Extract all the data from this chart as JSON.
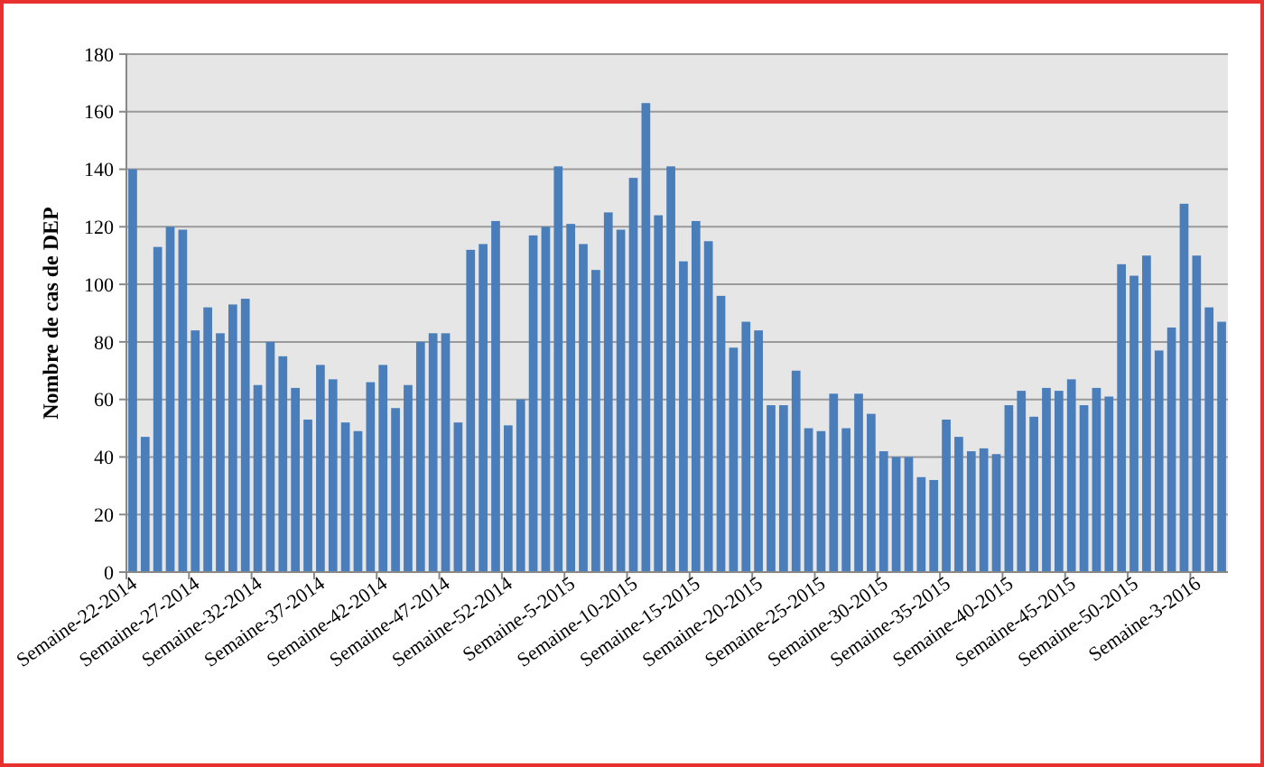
{
  "chart_data": {
    "type": "bar",
    "ylabel": "Nombre de cas de DEP",
    "categories": [
      "Semaine-22-2014",
      null,
      null,
      null,
      null,
      "Semaine-27-2014",
      null,
      null,
      null,
      null,
      "Semaine-32-2014",
      null,
      null,
      null,
      null,
      "Semaine-37-2014",
      null,
      null,
      null,
      null,
      "Semaine-42-2014",
      null,
      null,
      null,
      null,
      "Semaine-47-2014",
      null,
      null,
      null,
      null,
      "Semaine-52-2014",
      null,
      null,
      null,
      null,
      "Semaine-5-2015",
      null,
      null,
      null,
      null,
      "Semaine-10-2015",
      null,
      null,
      null,
      null,
      "Semaine-15-2015",
      null,
      null,
      null,
      null,
      "Semaine-20-2015",
      null,
      null,
      null,
      null,
      "Semaine-25-2015",
      null,
      null,
      null,
      null,
      "Semaine-30-2015",
      null,
      null,
      null,
      null,
      "Semaine-35-2015",
      null,
      null,
      null,
      null,
      "Semaine-40-2015",
      null,
      null,
      null,
      null,
      "Semaine-45-2015",
      null,
      null,
      null,
      null,
      "Semaine-50-2015",
      null,
      null,
      null,
      null,
      "Semaine-3-2016",
      null,
      null
    ],
    "values": [
      140,
      47,
      113,
      120,
      119,
      84,
      92,
      83,
      93,
      95,
      65,
      80,
      75,
      64,
      53,
      72,
      67,
      52,
      49,
      66,
      72,
      57,
      65,
      80,
      83,
      83,
      52,
      112,
      114,
      122,
      51,
      60,
      117,
      120,
      141,
      121,
      114,
      105,
      125,
      119,
      137,
      163,
      124,
      141,
      108,
      122,
      115,
      96,
      78,
      87,
      84,
      58,
      58,
      70,
      50,
      49,
      62,
      50,
      62,
      55,
      42,
      40,
      40,
      33,
      32,
      53,
      47,
      42,
      43,
      41,
      58,
      63,
      54,
      64,
      63,
      67,
      58,
      64,
      61,
      107,
      103,
      110,
      77,
      85,
      128,
      110,
      92,
      87
    ],
    "color": "#4a7ebb",
    "ylim": [
      0,
      180
    ],
    "yticks": [
      0,
      20,
      40,
      60,
      80,
      100,
      120,
      140,
      160,
      180
    ],
    "grid": "y"
  }
}
